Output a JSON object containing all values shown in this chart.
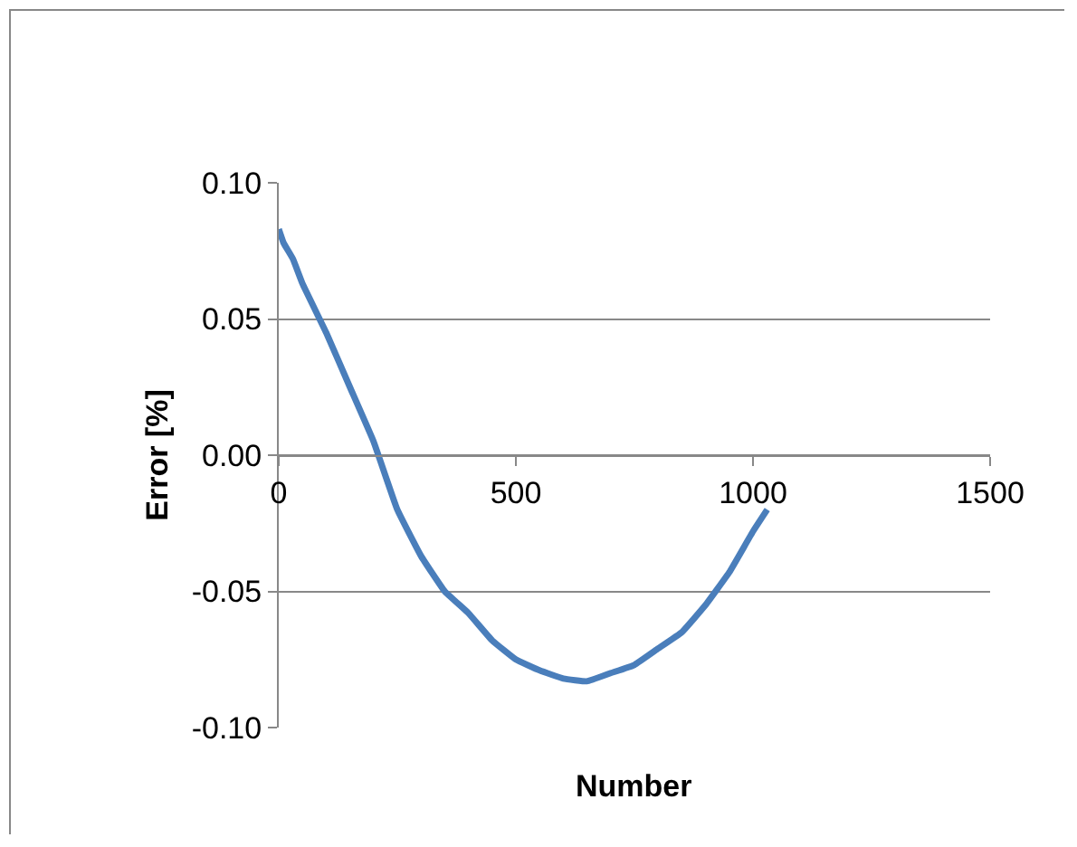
{
  "chart_data": {
    "type": "line",
    "xlabel": "Number",
    "ylabel": "Error [%]",
    "xlim": [
      0,
      1500
    ],
    "xticks": [
      0,
      500,
      1000,
      1500
    ],
    "ylim": [
      -0.1,
      0.1
    ],
    "yticks": [
      {
        "value": -0.1,
        "label": "-0.10"
      },
      {
        "value": -0.05,
        "label": "-0.05"
      },
      {
        "value": 0,
        "label": "0.00"
      },
      {
        "value": 0.05,
        "label": "0.05"
      },
      {
        "value": 0.1,
        "label": "0.10"
      }
    ],
    "grid": "y",
    "marker": "none",
    "line_style": "solid",
    "series": [
      {
        "color": "#4a7ebb",
        "x": [
          0,
          10,
          30,
          50,
          100,
          150,
          200,
          250,
          300,
          350,
          400,
          450,
          500,
          550,
          600,
          650,
          700,
          750,
          800,
          850,
          900,
          950,
          1000,
          1030
        ],
        "values": [
          0.083,
          0.078,
          0.072,
          0.063,
          0.045,
          0.025,
          0.005,
          -0.02,
          -0.037,
          -0.05,
          -0.058,
          -0.068,
          -0.075,
          -0.079,
          -0.082,
          -0.083,
          -0.08,
          -0.077,
          -0.071,
          -0.065,
          -0.055,
          -0.043,
          -0.028,
          -0.02
        ]
      }
    ]
  }
}
